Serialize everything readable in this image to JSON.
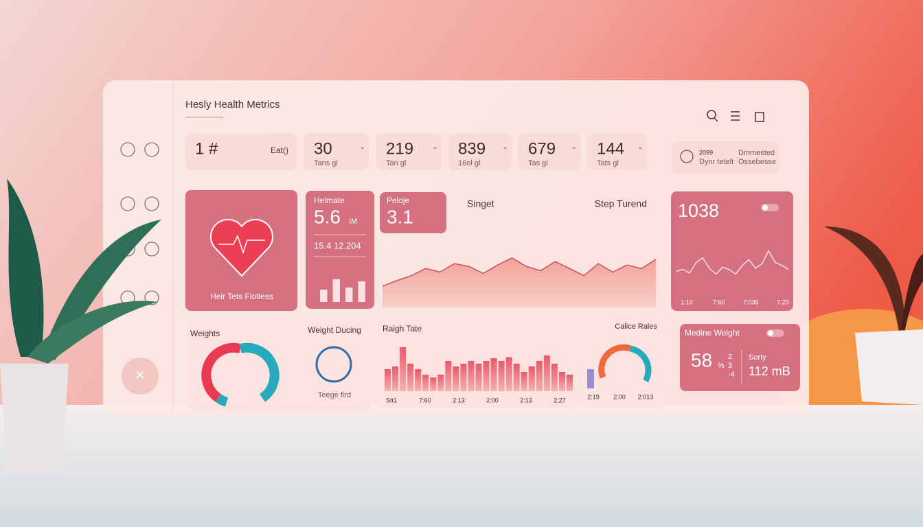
{
  "header": {
    "title": "Hesly Health Metrics"
  },
  "stats": [
    {
      "value": "1 #",
      "label": "Eat()"
    },
    {
      "value": "30",
      "label": "Tans gl"
    },
    {
      "value": "219",
      "label": "Tan gl"
    },
    {
      "value": "839",
      "label": "16ol gl"
    },
    {
      "value": "679",
      "label": "Tas gl"
    },
    {
      "value": "144",
      "label": "Tats gl"
    }
  ],
  "info": {
    "value": "2099",
    "label": "Dynr tetelt",
    "right_top": "Dmmested",
    "right_bottom": "Ossebesse"
  },
  "heart": {
    "caption": "Heir Tets Flotless"
  },
  "heart_rate": {
    "title": "Helmate",
    "value": "5.6",
    "unit": "IM",
    "detail": "15.4 12.204",
    "bars": [
      30,
      55,
      35,
      50
    ]
  },
  "pulse": {
    "title": "Peloje",
    "value": "3.1"
  },
  "step_trend": {
    "left_title": "Singet",
    "title": "Step Turend",
    "values": [
      30,
      38,
      45,
      55,
      50,
      62,
      58,
      48,
      60,
      70,
      58,
      52,
      65,
      55,
      45,
      62,
      50,
      60,
      55,
      68
    ]
  },
  "activity": {
    "value": "1038",
    "x_labels": [
      "1:10",
      "7:60",
      "7:035",
      "7:20"
    ],
    "values": [
      35,
      38,
      32,
      50,
      58,
      40,
      30,
      42,
      38,
      30,
      45,
      55,
      40,
      48,
      70,
      50,
      45,
      38
    ]
  },
  "weights": {
    "title": "Weights"
  },
  "weight_timer": {
    "title": "Weight Ducing",
    "caption": "Teege fird"
  },
  "rate": {
    "title": "Raigh Tate",
    "x_labels": [
      "Stt1",
      "7:60",
      "2:13",
      "2:00",
      "2:13",
      "2:27"
    ],
    "values": [
      40,
      45,
      80,
      50,
      40,
      30,
      25,
      30,
      55,
      45,
      50,
      55,
      50,
      55,
      60,
      55,
      62,
      50,
      35,
      45,
      55,
      65,
      50,
      35,
      30
    ]
  },
  "calories": {
    "title": "Calice Rales",
    "x_labels": [
      "2:19",
      "2:00",
      "2:013"
    ]
  },
  "median_weight": {
    "title": "Medine Weight",
    "value": "58",
    "unit": "%",
    "small": [
      "2",
      "3",
      "·4"
    ],
    "label": "Sorty",
    "size": "112 mB"
  }
}
